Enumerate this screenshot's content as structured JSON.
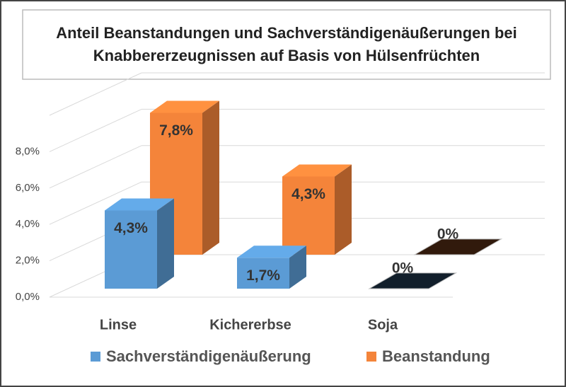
{
  "chart_data": {
    "type": "bar3d",
    "title": "Anteil Beanstandungen und Sachverständigenäußerungen bei Knabbererzeugnissen auf Basis von Hülsenfrüchten",
    "categories": [
      "Linse",
      "Kichererbse",
      "Soja"
    ],
    "series": [
      {
        "name": "Sachverständigenäußerung",
        "color": "#5b9bd5",
        "values": [
          4.3,
          1.7,
          0
        ],
        "value_labels": [
          "4,3%",
          "1,7%",
          "0%"
        ]
      },
      {
        "name": "Beanstandung",
        "color": "#f4843a",
        "values": [
          7.8,
          4.3,
          0
        ],
        "value_labels": [
          "7,8%",
          "4,3%",
          "0%"
        ]
      }
    ],
    "ylim": [
      0,
      10
    ],
    "yticks": [
      {
        "value": 0,
        "label": "0,0%"
      },
      {
        "value": 2,
        "label": "2,0%"
      },
      {
        "value": 4,
        "label": "4,0%"
      },
      {
        "value": 6,
        "label": "6,0%"
      },
      {
        "value": 8,
        "label": "8,0%"
      }
    ],
    "grid": true,
    "legend": "bottom"
  }
}
